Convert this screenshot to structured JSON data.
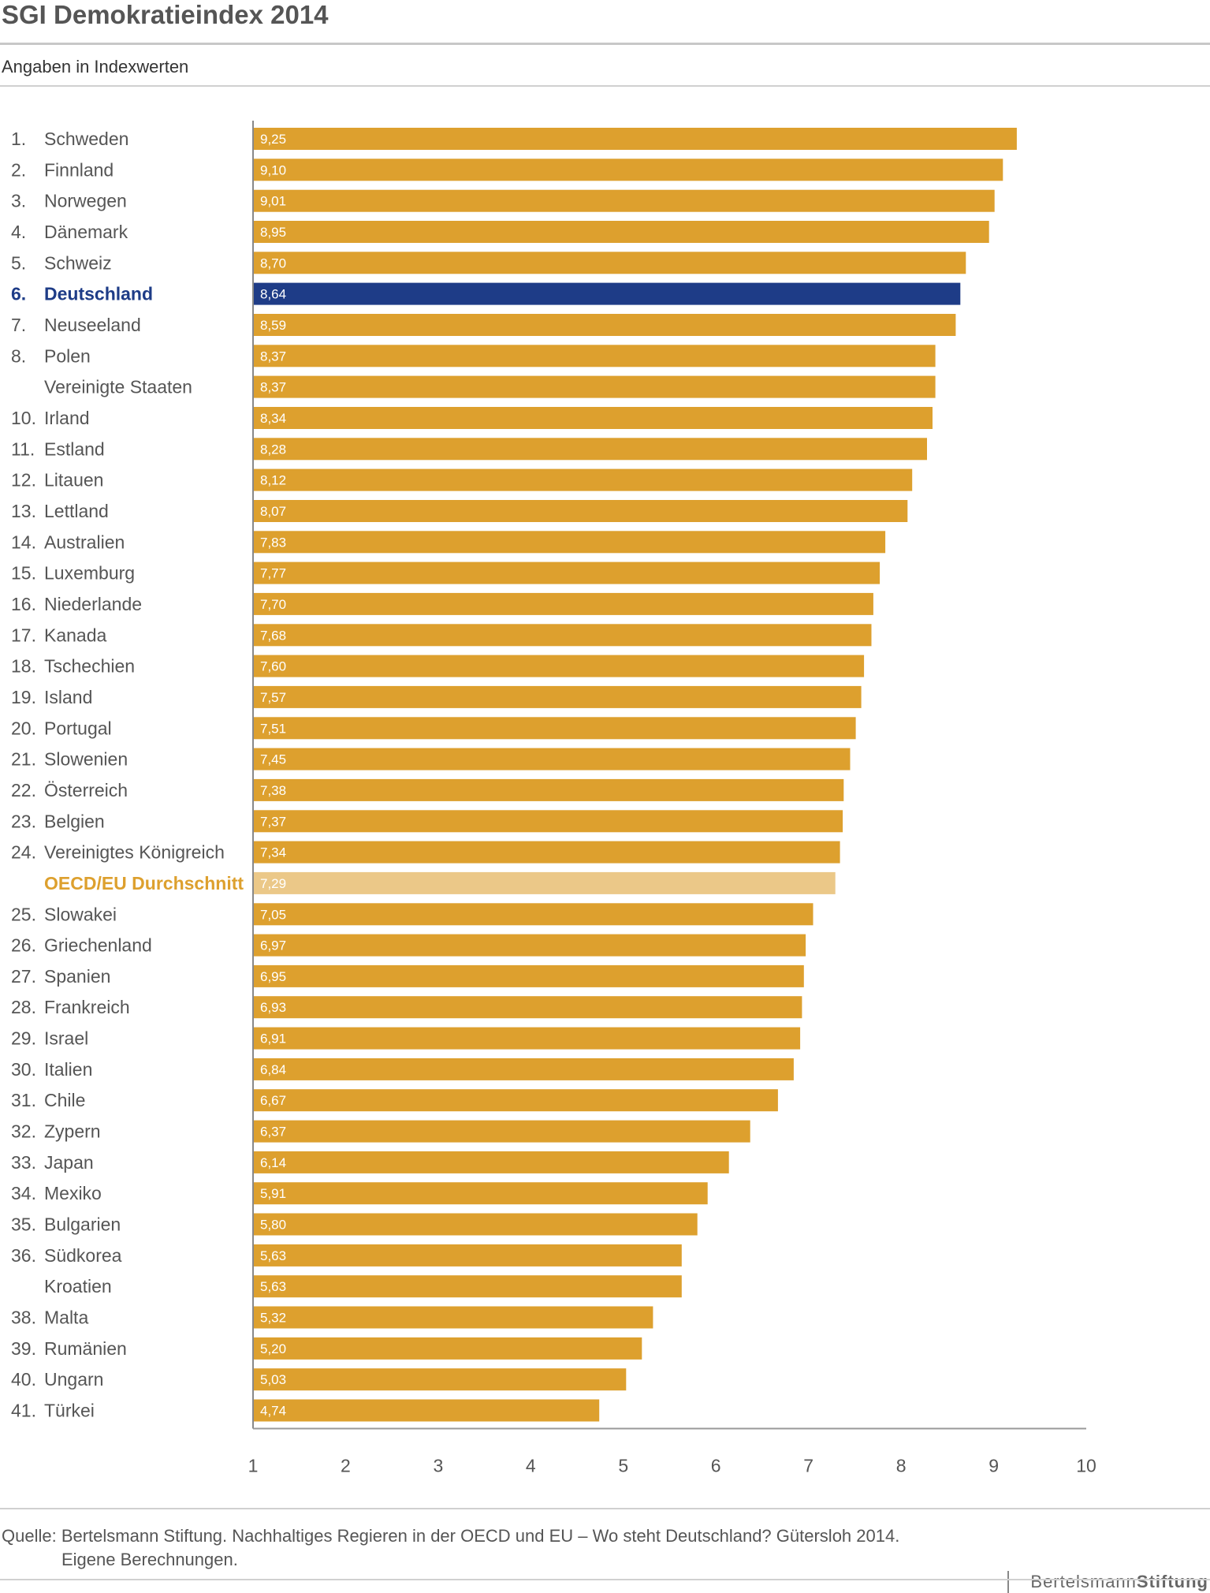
{
  "header": {
    "title": "SGI Demokratieindex 2014",
    "subtitle": "Angaben in Indexwerten"
  },
  "footer": {
    "source_line1": "Quelle: Bertelsmann Stiftung. Nachhaltiges Regieren in der OECD und EU – Wo steht Deutschland? Gütersloh 2014.",
    "source_line2": "Eigene Berechnungen.",
    "logo_light": "Bertelsmann",
    "logo_bold": "Stiftung"
  },
  "colors": {
    "bar": "#dda02e",
    "highlight": "#1e3c87",
    "average": "#ebc888"
  },
  "chart_data": {
    "type": "bar",
    "orientation": "horizontal",
    "title": "SGI Demokratieindex 2014",
    "subtitle": "Angaben in Indexwerten",
    "xlim": [
      1,
      10
    ],
    "xticks": [
      "1",
      "2",
      "3",
      "4",
      "5",
      "6",
      "7",
      "8",
      "9",
      "10"
    ],
    "grid": false,
    "rows": [
      {
        "rank": "1.",
        "name": "Schweden",
        "value": 9.25,
        "label": "9,25"
      },
      {
        "rank": "2.",
        "name": "Finnland",
        "value": 9.1,
        "label": "9,10"
      },
      {
        "rank": "3.",
        "name": "Norwegen",
        "value": 9.01,
        "label": "9,01"
      },
      {
        "rank": "4.",
        "name": "Dänemark",
        "value": 8.95,
        "label": "8,95"
      },
      {
        "rank": "5.",
        "name": "Schweiz",
        "value": 8.7,
        "label": "8,70"
      },
      {
        "rank": "6.",
        "name": "Deutschland",
        "value": 8.64,
        "label": "8,64",
        "highlight": "germany"
      },
      {
        "rank": "7.",
        "name": "Neuseeland",
        "value": 8.59,
        "label": "8,59"
      },
      {
        "rank": "8.",
        "name": "Polen",
        "value": 8.37,
        "label": "8,37"
      },
      {
        "rank": "",
        "name": "Vereinigte Staaten",
        "value": 8.37,
        "label": "8,37"
      },
      {
        "rank": "10.",
        "name": "Irland",
        "value": 8.34,
        "label": "8,34"
      },
      {
        "rank": "11.",
        "name": "Estland",
        "value": 8.28,
        "label": "8,28"
      },
      {
        "rank": "12.",
        "name": "Litauen",
        "value": 8.12,
        "label": "8,12"
      },
      {
        "rank": "13.",
        "name": "Lettland",
        "value": 8.07,
        "label": "8,07"
      },
      {
        "rank": "14.",
        "name": "Australien",
        "value": 7.83,
        "label": "7,83"
      },
      {
        "rank": "15.",
        "name": "Luxemburg",
        "value": 7.77,
        "label": "7,77"
      },
      {
        "rank": "16.",
        "name": "Niederlande",
        "value": 7.7,
        "label": "7,70"
      },
      {
        "rank": "17.",
        "name": "Kanada",
        "value": 7.68,
        "label": "7,68"
      },
      {
        "rank": "18.",
        "name": "Tschechien",
        "value": 7.6,
        "label": "7,60"
      },
      {
        "rank": "19.",
        "name": "Island",
        "value": 7.57,
        "label": "7,57"
      },
      {
        "rank": "20.",
        "name": "Portugal",
        "value": 7.51,
        "label": "7,51"
      },
      {
        "rank": "21.",
        "name": "Slowenien",
        "value": 7.45,
        "label": "7,45"
      },
      {
        "rank": "22.",
        "name": "Österreich",
        "value": 7.38,
        "label": "7,38"
      },
      {
        "rank": "23.",
        "name": "Belgien",
        "value": 7.37,
        "label": "7,37"
      },
      {
        "rank": "24.",
        "name": "Vereinigtes Königreich",
        "value": 7.34,
        "label": "7,34"
      },
      {
        "rank": "",
        "name": "OECD/EU Durchschnitt",
        "value": 7.29,
        "label": "7,29",
        "highlight": "average"
      },
      {
        "rank": "25.",
        "name": "Slowakei",
        "value": 7.05,
        "label": "7,05"
      },
      {
        "rank": "26.",
        "name": "Griechenland",
        "value": 6.97,
        "label": "6,97"
      },
      {
        "rank": "27.",
        "name": "Spanien",
        "value": 6.95,
        "label": "6,95"
      },
      {
        "rank": "28.",
        "name": "Frankreich",
        "value": 6.93,
        "label": "6,93"
      },
      {
        "rank": "29.",
        "name": "Israel",
        "value": 6.91,
        "label": "6,91"
      },
      {
        "rank": "30.",
        "name": "Italien",
        "value": 6.84,
        "label": "6,84"
      },
      {
        "rank": "31.",
        "name": "Chile",
        "value": 6.67,
        "label": "6,67"
      },
      {
        "rank": "32.",
        "name": "Zypern",
        "value": 6.37,
        "label": "6,37"
      },
      {
        "rank": "33.",
        "name": "Japan",
        "value": 6.14,
        "label": "6,14"
      },
      {
        "rank": "34.",
        "name": "Mexiko",
        "value": 5.91,
        "label": "5,91"
      },
      {
        "rank": "35.",
        "name": "Bulgarien",
        "value": 5.8,
        "label": "5,80"
      },
      {
        "rank": "36.",
        "name": "Südkorea",
        "value": 5.63,
        "label": "5,63"
      },
      {
        "rank": "",
        "name": "Kroatien",
        "value": 5.63,
        "label": "5,63"
      },
      {
        "rank": "38.",
        "name": "Malta",
        "value": 5.32,
        "label": "5,32"
      },
      {
        "rank": "39.",
        "name": "Rumänien",
        "value": 5.2,
        "label": "5,20"
      },
      {
        "rank": "40.",
        "name": "Ungarn",
        "value": 5.03,
        "label": "5,03"
      },
      {
        "rank": "41.",
        "name": "Türkei",
        "value": 4.74,
        "label": "4,74"
      }
    ]
  }
}
